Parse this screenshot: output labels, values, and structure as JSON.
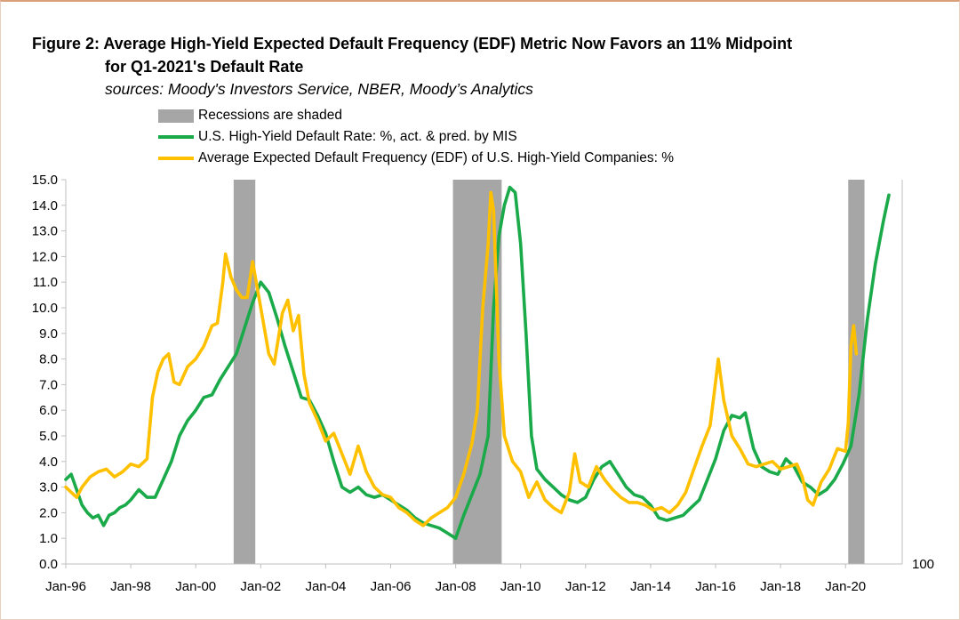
{
  "title": {
    "line1": "Figure 2: Average High-Yield Expected Default Frequency (EDF) Metric Now Favors an 11% Midpoint",
    "line2": "for Q1-2021's  Default Rate"
  },
  "sources": "sources: Moody's Investors Service, NBER, Moody’s Analytics",
  "colors": {
    "default_rate": "#1aaa4a",
    "edf": "#ffc000",
    "recession": "#a6a6a6",
    "axis": "#bfbfbf"
  },
  "chart_data": {
    "type": "line",
    "x_unit": "month",
    "xlim": [
      "1996-01",
      "2021-06"
    ],
    "ylim": [
      0,
      15
    ],
    "y_ticks": [
      "0.0",
      "1.0",
      "2.0",
      "3.0",
      "4.0",
      "5.0",
      "6.0",
      "7.0",
      "8.0",
      "9.0",
      "10.0",
      "11.0",
      "12.0",
      "13.0",
      "14.0",
      "15.0"
    ],
    "x_ticks": [
      {
        "date": "1996-01",
        "label": "Jan-96"
      },
      {
        "date": "1998-01",
        "label": "Jan-98"
      },
      {
        "date": "2000-01",
        "label": "Jan-00"
      },
      {
        "date": "2002-01",
        "label": "Jan-02"
      },
      {
        "date": "2004-01",
        "label": "Jan-04"
      },
      {
        "date": "2006-01",
        "label": "Jan-06"
      },
      {
        "date": "2008-01",
        "label": "Jan-08"
      },
      {
        "date": "2010-01",
        "label": "Jan-10"
      },
      {
        "date": "2012-01",
        "label": "Jan-12"
      },
      {
        "date": "2014-01",
        "label": "Jan-14"
      },
      {
        "date": "2016-01",
        "label": "Jan-16"
      },
      {
        "date": "2018-01",
        "label": "Jan-18"
      },
      {
        "date": "2020-01",
        "label": "Jan-20"
      }
    ],
    "secondary_axis_label": "100",
    "grid": false,
    "legend_position": "top",
    "recessions": [
      {
        "label": "Recessions are shaded",
        "start": "2001-03",
        "end": "2001-11"
      },
      {
        "start": "2007-12",
        "end": "2009-06"
      },
      {
        "start": "2020-02",
        "end": "2020-08"
      }
    ],
    "series": [
      {
        "name": "U.S. High-Yield Default Rate: %, act. & pred. by MIS",
        "color": "#1aaa4a",
        "points": [
          [
            "1996-01",
            3.3
          ],
          [
            "1996-03",
            3.5
          ],
          [
            "1996-05",
            2.9
          ],
          [
            "1996-07",
            2.3
          ],
          [
            "1996-09",
            2.0
          ],
          [
            "1996-11",
            1.8
          ],
          [
            "1997-01",
            1.9
          ],
          [
            "1997-03",
            1.5
          ],
          [
            "1997-05",
            1.9
          ],
          [
            "1997-07",
            2.0
          ],
          [
            "1997-09",
            2.2
          ],
          [
            "1997-11",
            2.3
          ],
          [
            "1998-01",
            2.5
          ],
          [
            "1998-04",
            2.9
          ],
          [
            "1998-07",
            2.6
          ],
          [
            "1998-10",
            2.6
          ],
          [
            "1999-01",
            3.3
          ],
          [
            "1999-04",
            4.0
          ],
          [
            "1999-07",
            5.0
          ],
          [
            "1999-10",
            5.6
          ],
          [
            "2000-01",
            6.0
          ],
          [
            "2000-04",
            6.5
          ],
          [
            "2000-07",
            6.6
          ],
          [
            "2000-10",
            7.2
          ],
          [
            "2001-01",
            7.7
          ],
          [
            "2001-04",
            8.2
          ],
          [
            "2001-07",
            9.2
          ],
          [
            "2001-10",
            10.2
          ],
          [
            "2002-01",
            11.0
          ],
          [
            "2002-04",
            10.6
          ],
          [
            "2002-07",
            9.6
          ],
          [
            "2002-10",
            8.5
          ],
          [
            "2003-01",
            7.5
          ],
          [
            "2003-04",
            6.5
          ],
          [
            "2003-07",
            6.4
          ],
          [
            "2003-10",
            5.8
          ],
          [
            "2004-01",
            5.1
          ],
          [
            "2004-04",
            4.0
          ],
          [
            "2004-07",
            3.0
          ],
          [
            "2004-10",
            2.8
          ],
          [
            "2005-01",
            3.0
          ],
          [
            "2005-04",
            2.7
          ],
          [
            "2005-07",
            2.6
          ],
          [
            "2005-10",
            2.7
          ],
          [
            "2006-01",
            2.5
          ],
          [
            "2006-04",
            2.3
          ],
          [
            "2006-07",
            2.1
          ],
          [
            "2006-10",
            1.8
          ],
          [
            "2007-01",
            1.6
          ],
          [
            "2007-04",
            1.5
          ],
          [
            "2007-07",
            1.4
          ],
          [
            "2007-10",
            1.2
          ],
          [
            "2008-01",
            1.0
          ],
          [
            "2008-04",
            1.9
          ],
          [
            "2008-07",
            2.7
          ],
          [
            "2008-10",
            3.5
          ],
          [
            "2009-01",
            5.0
          ],
          [
            "2009-03",
            10.0
          ],
          [
            "2009-05",
            12.8
          ],
          [
            "2009-07",
            14.0
          ],
          [
            "2009-09",
            14.7
          ],
          [
            "2009-11",
            14.5
          ],
          [
            "2010-01",
            12.5
          ],
          [
            "2010-03",
            9.0
          ],
          [
            "2010-05",
            5.0
          ],
          [
            "2010-07",
            3.7
          ],
          [
            "2010-10",
            3.3
          ],
          [
            "2011-01",
            3.0
          ],
          [
            "2011-04",
            2.7
          ],
          [
            "2011-07",
            2.5
          ],
          [
            "2011-10",
            2.4
          ],
          [
            "2012-01",
            2.6
          ],
          [
            "2012-04",
            3.3
          ],
          [
            "2012-07",
            3.8
          ],
          [
            "2012-10",
            4.0
          ],
          [
            "2013-01",
            3.5
          ],
          [
            "2013-04",
            3.0
          ],
          [
            "2013-07",
            2.7
          ],
          [
            "2013-10",
            2.6
          ],
          [
            "2014-01",
            2.3
          ],
          [
            "2014-04",
            1.8
          ],
          [
            "2014-07",
            1.7
          ],
          [
            "2014-10",
            1.8
          ],
          [
            "2015-01",
            1.9
          ],
          [
            "2015-04",
            2.2
          ],
          [
            "2015-07",
            2.5
          ],
          [
            "2015-10",
            3.3
          ],
          [
            "2016-01",
            4.1
          ],
          [
            "2016-04",
            5.2
          ],
          [
            "2016-07",
            5.8
          ],
          [
            "2016-10",
            5.7
          ],
          [
            "2016-12",
            5.9
          ],
          [
            "2017-03",
            4.5
          ],
          [
            "2017-06",
            3.8
          ],
          [
            "2017-09",
            3.6
          ],
          [
            "2017-12",
            3.5
          ],
          [
            "2018-03",
            4.1
          ],
          [
            "2018-06",
            3.8
          ],
          [
            "2018-09",
            3.2
          ],
          [
            "2018-12",
            3.0
          ],
          [
            "2019-03",
            2.7
          ],
          [
            "2019-06",
            2.9
          ],
          [
            "2019-09",
            3.3
          ],
          [
            "2019-12",
            3.9
          ],
          [
            "2020-03",
            4.6
          ],
          [
            "2020-06",
            6.6
          ],
          [
            "2020-09",
            9.5
          ],
          [
            "2020-12",
            11.7
          ],
          [
            "2021-03",
            13.4
          ],
          [
            "2021-05",
            14.4
          ]
        ]
      },
      {
        "name": "Average Expected Default Frequency (EDF) of U.S. High-Yield Companies: %",
        "color": "#ffc000",
        "points": [
          [
            "1996-01",
            3.0
          ],
          [
            "1996-03",
            2.8
          ],
          [
            "1996-05",
            2.6
          ],
          [
            "1996-07",
            3.0
          ],
          [
            "1996-10",
            3.4
          ],
          [
            "1997-01",
            3.6
          ],
          [
            "1997-04",
            3.7
          ],
          [
            "1997-07",
            3.4
          ],
          [
            "1997-10",
            3.6
          ],
          [
            "1998-01",
            3.9
          ],
          [
            "1998-04",
            3.8
          ],
          [
            "1998-07",
            4.1
          ],
          [
            "1998-09",
            6.5
          ],
          [
            "1998-11",
            7.5
          ],
          [
            "1999-01",
            8.0
          ],
          [
            "1999-03",
            8.2
          ],
          [
            "1999-05",
            7.1
          ],
          [
            "1999-07",
            7.0
          ],
          [
            "1999-10",
            7.7
          ],
          [
            "2000-01",
            8.0
          ],
          [
            "2000-04",
            8.5
          ],
          [
            "2000-07",
            9.3
          ],
          [
            "2000-09",
            9.4
          ],
          [
            "2000-11",
            11.0
          ],
          [
            "2000-12",
            12.1
          ],
          [
            "2001-02",
            11.2
          ],
          [
            "2001-04",
            10.7
          ],
          [
            "2001-06",
            10.4
          ],
          [
            "2001-08",
            10.4
          ],
          [
            "2001-10",
            11.8
          ],
          [
            "2001-12",
            10.6
          ],
          [
            "2002-02",
            9.4
          ],
          [
            "2002-04",
            8.2
          ],
          [
            "2002-06",
            7.8
          ],
          [
            "2002-09",
            9.8
          ],
          [
            "2002-11",
            10.3
          ],
          [
            "2003-01",
            9.1
          ],
          [
            "2003-03",
            9.7
          ],
          [
            "2003-05",
            7.4
          ],
          [
            "2003-07",
            6.3
          ],
          [
            "2003-10",
            5.6
          ],
          [
            "2004-01",
            4.8
          ],
          [
            "2004-04",
            5.1
          ],
          [
            "2004-07",
            4.3
          ],
          [
            "2004-10",
            3.5
          ],
          [
            "2005-01",
            4.6
          ],
          [
            "2005-04",
            3.6
          ],
          [
            "2005-07",
            3.0
          ],
          [
            "2005-10",
            2.7
          ],
          [
            "2006-01",
            2.6
          ],
          [
            "2006-04",
            2.2
          ],
          [
            "2006-07",
            2.0
          ],
          [
            "2006-10",
            1.7
          ],
          [
            "2007-01",
            1.5
          ],
          [
            "2007-04",
            1.8
          ],
          [
            "2007-07",
            2.0
          ],
          [
            "2007-10",
            2.2
          ],
          [
            "2008-01",
            2.6
          ],
          [
            "2008-04",
            3.5
          ],
          [
            "2008-07",
            4.7
          ],
          [
            "2008-09",
            6.0
          ],
          [
            "2008-11",
            10.0
          ],
          [
            "2009-01",
            12.5
          ],
          [
            "2009-02",
            14.5
          ],
          [
            "2009-03",
            13.8
          ],
          [
            "2009-05",
            8.0
          ],
          [
            "2009-07",
            5.0
          ],
          [
            "2009-10",
            4.0
          ],
          [
            "2010-01",
            3.6
          ],
          [
            "2010-04",
            2.6
          ],
          [
            "2010-07",
            3.2
          ],
          [
            "2010-10",
            2.5
          ],
          [
            "2011-01",
            2.2
          ],
          [
            "2011-04",
            2.0
          ],
          [
            "2011-07",
            2.8
          ],
          [
            "2011-09",
            4.3
          ],
          [
            "2011-11",
            3.2
          ],
          [
            "2012-02",
            3.0
          ],
          [
            "2012-05",
            3.8
          ],
          [
            "2012-08",
            3.3
          ],
          [
            "2012-11",
            2.9
          ],
          [
            "2013-02",
            2.6
          ],
          [
            "2013-05",
            2.4
          ],
          [
            "2013-08",
            2.4
          ],
          [
            "2013-11",
            2.3
          ],
          [
            "2014-02",
            2.1
          ],
          [
            "2014-05",
            2.2
          ],
          [
            "2014-08",
            2.0
          ],
          [
            "2014-11",
            2.3
          ],
          [
            "2015-02",
            2.8
          ],
          [
            "2015-05",
            3.7
          ],
          [
            "2015-08",
            4.6
          ],
          [
            "2015-11",
            5.4
          ],
          [
            "2016-01",
            7.1
          ],
          [
            "2016-02",
            8.0
          ],
          [
            "2016-04",
            6.4
          ],
          [
            "2016-07",
            5.0
          ],
          [
            "2016-10",
            4.5
          ],
          [
            "2017-01",
            3.9
          ],
          [
            "2017-04",
            3.8
          ],
          [
            "2017-07",
            3.9
          ],
          [
            "2017-10",
            4.0
          ],
          [
            "2018-01",
            3.7
          ],
          [
            "2018-04",
            3.8
          ],
          [
            "2018-07",
            3.9
          ],
          [
            "2018-09",
            3.4
          ],
          [
            "2018-11",
            2.5
          ],
          [
            "2019-01",
            2.3
          ],
          [
            "2019-04",
            3.2
          ],
          [
            "2019-07",
            3.7
          ],
          [
            "2019-10",
            4.5
          ],
          [
            "2020-01",
            4.4
          ],
          [
            "2020-02",
            5.5
          ],
          [
            "2020-03",
            8.5
          ],
          [
            "2020-04",
            9.3
          ],
          [
            "2020-05",
            8.2
          ]
        ]
      }
    ]
  }
}
